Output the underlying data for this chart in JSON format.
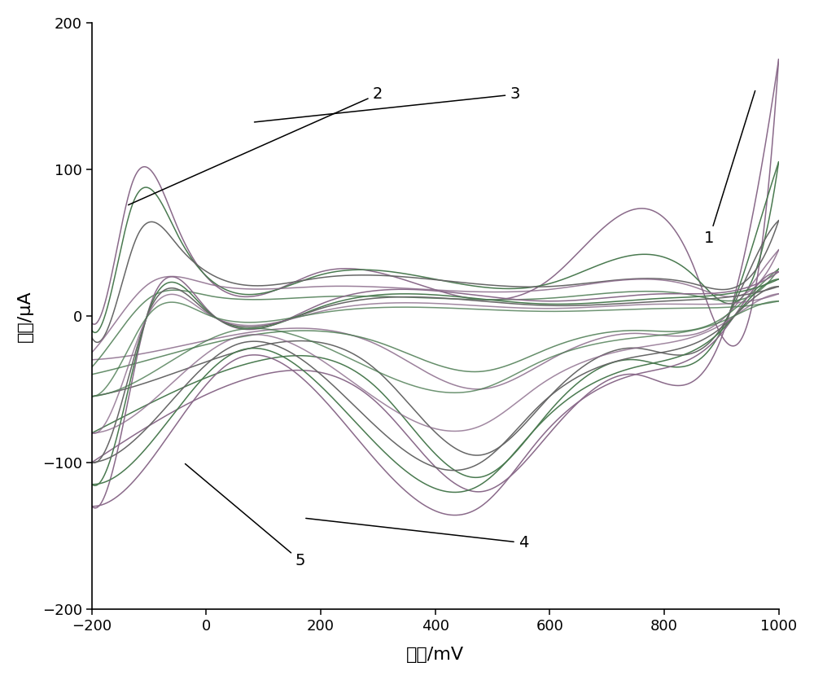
{
  "xlim": [
    -200,
    1000
  ],
  "ylim": [
    -200,
    200
  ],
  "xlabel": "电位/mV",
  "ylabel": "电流/μA",
  "xticks": [
    -200,
    0,
    200,
    400,
    600,
    800,
    1000
  ],
  "yticks": [
    -200,
    -100,
    0,
    100,
    200
  ],
  "bg_color": "#ffffff",
  "colors": {
    "green": "#4a7a50",
    "purple": "#8a6a8a",
    "gray": "#666666",
    "dark": "#333333"
  },
  "lw": 1.1
}
